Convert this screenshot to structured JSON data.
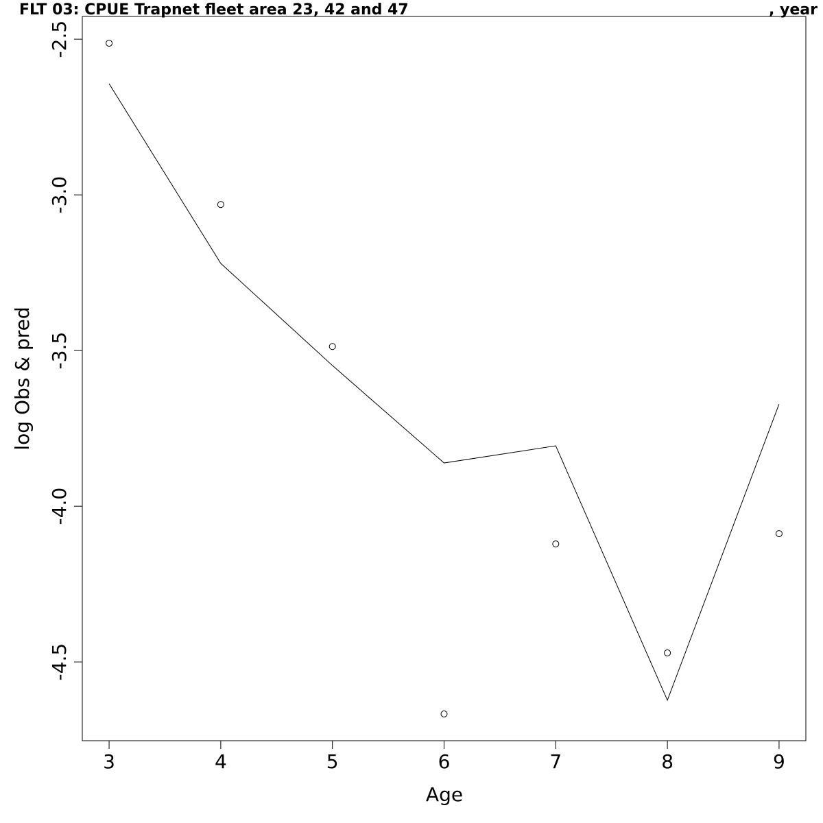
{
  "chart_data": {
    "type": "line",
    "title": "FLT 03: CPUE Trapnet fleet area 23, 42 and 47",
    "title_right": ", year",
    "x_label": "Age",
    "y_label": "log Obs & pred",
    "x": [
      3,
      4,
      5,
      6,
      7,
      8,
      9
    ],
    "series": [
      {
        "mode": "points",
        "color": "#000000",
        "values": [
          -2.513,
          -3.031,
          -3.487,
          -4.667,
          -4.121,
          -4.471,
          -4.088
        ]
      },
      {
        "mode": "line",
        "color": "#000000",
        "values": [
          -2.643,
          -3.22,
          -3.548,
          -3.861,
          -3.806,
          -4.623,
          -3.672
        ]
      }
    ],
    "xlim": [
      2.76,
      9.24
    ],
    "ylim": [
      -4.753,
      -2.427
    ],
    "xticks": [
      3,
      4,
      5,
      6,
      7,
      8,
      9
    ],
    "yticks": [
      -2.5,
      {
        "value": -3,
        "label": "-3.0"
      },
      -3.5,
      {
        "value": -4,
        "label": "-4.0"
      },
      -4.5
    ],
    "grid": false
  }
}
